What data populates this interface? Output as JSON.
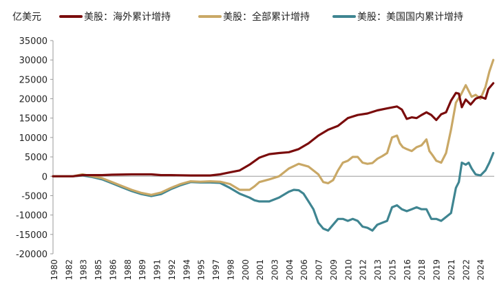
{
  "chart_data": {
    "type": "line",
    "unit_label": "亿美元",
    "ylim": [
      -20000,
      35000
    ],
    "yticks": [
      -20000,
      -15000,
      -10000,
      -5000,
      0,
      5000,
      10000,
      15000,
      20000,
      25000,
      30000,
      35000
    ],
    "xlim": [
      1980,
      2024.9
    ],
    "xticks": [
      "1980",
      "1982",
      "1983",
      "1985",
      "1986",
      "1988",
      "1989",
      "1991",
      "1992",
      "1994",
      "1995",
      "1997",
      "1998",
      "2000",
      "2001",
      "2003",
      "2004",
      "2006",
      "2007",
      "2009",
      "2010",
      "2012",
      "2013",
      "2015",
      "2016",
      "2018",
      "2019",
      "2021",
      "2022",
      "2024"
    ],
    "legend_position": "top",
    "grid": false,
    "series": [
      {
        "name": "美股：海外累计增持",
        "color": "#7a0c0c",
        "points": [
          [
            1980,
            0
          ],
          [
            1982,
            0
          ],
          [
            1983,
            300
          ],
          [
            1985,
            300
          ],
          [
            1986,
            400
          ],
          [
            1988,
            500
          ],
          [
            1990,
            500
          ],
          [
            1991,
            300
          ],
          [
            1992,
            300
          ],
          [
            1994,
            200
          ],
          [
            1996,
            200
          ],
          [
            1997,
            500
          ],
          [
            1998,
            1000
          ],
          [
            1999,
            1500
          ],
          [
            2000,
            3000
          ],
          [
            2001,
            4800
          ],
          [
            2002,
            5700
          ],
          [
            2003,
            6000
          ],
          [
            2004,
            6200
          ],
          [
            2005,
            7000
          ],
          [
            2006,
            8500
          ],
          [
            2007,
            10500
          ],
          [
            2008,
            12000
          ],
          [
            2009,
            13000
          ],
          [
            2010,
            15000
          ],
          [
            2011,
            15800
          ],
          [
            2012,
            16200
          ],
          [
            2013,
            17000
          ],
          [
            2014,
            17500
          ],
          [
            2015,
            18000
          ],
          [
            2015.5,
            17200
          ],
          [
            2016,
            14800
          ],
          [
            2016.5,
            15200
          ],
          [
            2017,
            15000
          ],
          [
            2017.5,
            15800
          ],
          [
            2018,
            16500
          ],
          [
            2018.5,
            15800
          ],
          [
            2019,
            14500
          ],
          [
            2019.5,
            16000
          ],
          [
            2020,
            16500
          ],
          [
            2020.5,
            19500
          ],
          [
            2021,
            21500
          ],
          [
            2021.3,
            21300
          ],
          [
            2021.6,
            17800
          ],
          [
            2022,
            19800
          ],
          [
            2022.5,
            18500
          ],
          [
            2023,
            20000
          ],
          [
            2023.5,
            20500
          ],
          [
            2024,
            20000
          ],
          [
            2024.3,
            22500
          ],
          [
            2024.8,
            24000
          ]
        ]
      },
      {
        "name": "美股：全部累计增持",
        "color": "#c9a866",
        "points": [
          [
            1980,
            0
          ],
          [
            1982,
            0
          ],
          [
            1983,
            500
          ],
          [
            1984,
            0
          ],
          [
            1985,
            -500
          ],
          [
            1986,
            -1500
          ],
          [
            1987,
            -2500
          ],
          [
            1988,
            -3500
          ],
          [
            1989,
            -4300
          ],
          [
            1990,
            -4800
          ],
          [
            1991,
            -4200
          ],
          [
            1992,
            -3000
          ],
          [
            1993,
            -2000
          ],
          [
            1994,
            -1300
          ],
          [
            1995,
            -1400
          ],
          [
            1996,
            -1300
          ],
          [
            1997,
            -1400
          ],
          [
            1998,
            -2000
          ],
          [
            1999,
            -3500
          ],
          [
            2000,
            -3500
          ],
          [
            2000.5,
            -2600
          ],
          [
            2001,
            -1500
          ],
          [
            2002,
            -800
          ],
          [
            2003,
            0
          ],
          [
            2004,
            2000
          ],
          [
            2005,
            3200
          ],
          [
            2006,
            2500
          ],
          [
            2007,
            500
          ],
          [
            2007.5,
            -1500
          ],
          [
            2008,
            -1800
          ],
          [
            2008.5,
            -1000
          ],
          [
            2009,
            1500
          ],
          [
            2009.5,
            3500
          ],
          [
            2010,
            4000
          ],
          [
            2010.5,
            5000
          ],
          [
            2011,
            5000
          ],
          [
            2011.5,
            3500
          ],
          [
            2012,
            3200
          ],
          [
            2012.5,
            3400
          ],
          [
            2013,
            4500
          ],
          [
            2013.5,
            5200
          ],
          [
            2014,
            6000
          ],
          [
            2014.5,
            10000
          ],
          [
            2015,
            10500
          ],
          [
            2015.3,
            8500
          ],
          [
            2015.6,
            7500
          ],
          [
            2016,
            7000
          ],
          [
            2016.5,
            6500
          ],
          [
            2017,
            7500
          ],
          [
            2017.5,
            8000
          ],
          [
            2018,
            9500
          ],
          [
            2018.3,
            6500
          ],
          [
            2018.6,
            5500
          ],
          [
            2019,
            4000
          ],
          [
            2019.5,
            3500
          ],
          [
            2020,
            6000
          ],
          [
            2020.5,
            12000
          ],
          [
            2021,
            19000
          ],
          [
            2021.5,
            21000
          ],
          [
            2022,
            23500
          ],
          [
            2022.3,
            22000
          ],
          [
            2022.6,
            20500
          ],
          [
            2023,
            21000
          ],
          [
            2023.5,
            20000
          ],
          [
            2024,
            23000
          ],
          [
            2024.4,
            27000
          ],
          [
            2024.8,
            30000
          ]
        ]
      },
      {
        "name": "美股：美国国内累计增持",
        "color": "#3f8591",
        "points": [
          [
            1980,
            0
          ],
          [
            1982,
            0
          ],
          [
            1983,
            200
          ],
          [
            1984,
            -200
          ],
          [
            1985,
            -800
          ],
          [
            1986,
            -1800
          ],
          [
            1987,
            -2800
          ],
          [
            1988,
            -3800
          ],
          [
            1989,
            -4600
          ],
          [
            1990,
            -5100
          ],
          [
            1991,
            -4600
          ],
          [
            1992,
            -3300
          ],
          [
            1993,
            -2300
          ],
          [
            1994,
            -1500
          ],
          [
            1995,
            -1600
          ],
          [
            1996,
            -1600
          ],
          [
            1997,
            -1700
          ],
          [
            1998,
            -3000
          ],
          [
            1999,
            -4500
          ],
          [
            2000,
            -5500
          ],
          [
            2000.5,
            -6200
          ],
          [
            2001,
            -6500
          ],
          [
            2002,
            -6500
          ],
          [
            2003,
            -5500
          ],
          [
            2004,
            -4000
          ],
          [
            2004.5,
            -3500
          ],
          [
            2005,
            -3600
          ],
          [
            2005.5,
            -4500
          ],
          [
            2006,
            -6500
          ],
          [
            2006.5,
            -8500
          ],
          [
            2007,
            -12000
          ],
          [
            2007.5,
            -13500
          ],
          [
            2008,
            -14000
          ],
          [
            2008.5,
            -12500
          ],
          [
            2009,
            -11000
          ],
          [
            2009.5,
            -11000
          ],
          [
            2010,
            -11500
          ],
          [
            2010.5,
            -11000
          ],
          [
            2011,
            -11500
          ],
          [
            2011.5,
            -13000
          ],
          [
            2012,
            -13300
          ],
          [
            2012.5,
            -14000
          ],
          [
            2013,
            -12500
          ],
          [
            2013.5,
            -12000
          ],
          [
            2014,
            -11500
          ],
          [
            2014.5,
            -8000
          ],
          [
            2015,
            -7500
          ],
          [
            2015.5,
            -8500
          ],
          [
            2016,
            -9000
          ],
          [
            2016.5,
            -8500
          ],
          [
            2017,
            -8000
          ],
          [
            2017.5,
            -8500
          ],
          [
            2018,
            -8500
          ],
          [
            2018.5,
            -11000
          ],
          [
            2019,
            -11000
          ],
          [
            2019.5,
            -11500
          ],
          [
            2020,
            -10500
          ],
          [
            2020.5,
            -9500
          ],
          [
            2021,
            -3000
          ],
          [
            2021.3,
            -1500
          ],
          [
            2021.6,
            3500
          ],
          [
            2022,
            3000
          ],
          [
            2022.3,
            3500
          ],
          [
            2022.6,
            2000
          ],
          [
            2023,
            500
          ],
          [
            2023.5,
            200
          ],
          [
            2024,
            1500
          ],
          [
            2024.4,
            3500
          ],
          [
            2024.8,
            6000
          ]
        ]
      }
    ]
  }
}
